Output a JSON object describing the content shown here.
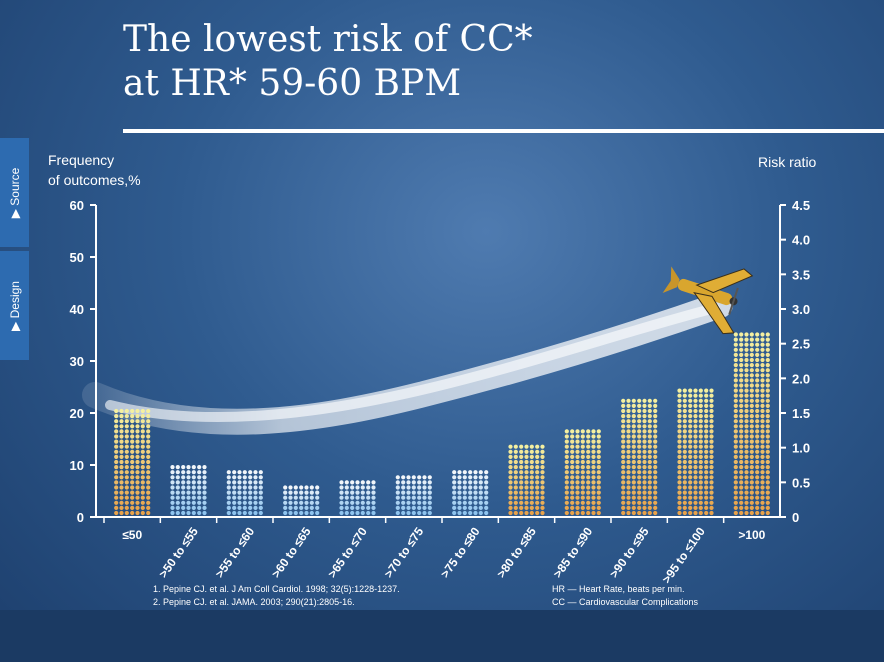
{
  "title_line1": "The lowest risk of CC*",
  "title_line2": "at HR* 59-60 BPM",
  "side_tabs": {
    "source": "▶  Source",
    "design": "▶  Design"
  },
  "chart_data": {
    "type": "bar",
    "ylabel_left_line1": "Frequency",
    "ylabel_left_line2": "of outcomes,%",
    "ylabel_right": "Risk ratio",
    "ylim_left": [
      0,
      60
    ],
    "yticks_left": [
      0,
      10,
      20,
      30,
      40,
      50,
      60
    ],
    "ylim_right": [
      0,
      4.5
    ],
    "yticks_right": [
      "0",
      "0.5",
      "1.0",
      "1.5",
      "2.0",
      "2.5",
      "3.0",
      "3.5",
      "4.0",
      "4.5"
    ],
    "categories": [
      "≤50",
      ">50 to ≤55",
      ">55 to ≤60",
      ">60 to ≤65",
      ">65 to ≤70",
      ">70 to ≤75",
      ">75 to ≤80",
      ">80 to ≤85",
      ">85 to ≤90",
      ">90 to ≤95",
      ">95 to ≤100",
      ">100"
    ],
    "values": [
      21,
      11,
      10,
      6.7,
      7.8,
      9,
      10,
      14.3,
      17.6,
      23,
      25.2,
      36.2
    ],
    "colors": [
      "orange",
      "blue",
      "blue",
      "blue",
      "blue",
      "blue",
      "blue",
      "orange",
      "orange",
      "orange",
      "orange",
      "orange"
    ],
    "palette": {
      "orange_bottom": "#e8a24a",
      "orange_top": "#f5f0a0",
      "blue_bottom": "#8fc4ee",
      "blue_top": "#f2f6fa"
    }
  },
  "references": {
    "line1": "1. Pepine CJ. et al. J Am Coll Cardiol. 1998; 32(5):1228-1237.",
    "line2": "2. Pepine CJ. et al. JAMA. 2003; 290(21):2805-16."
  },
  "abbreviations": {
    "line1": "HR — Heart Rate, beats per min.",
    "line2": "CC — Cardiovascular Complications"
  }
}
